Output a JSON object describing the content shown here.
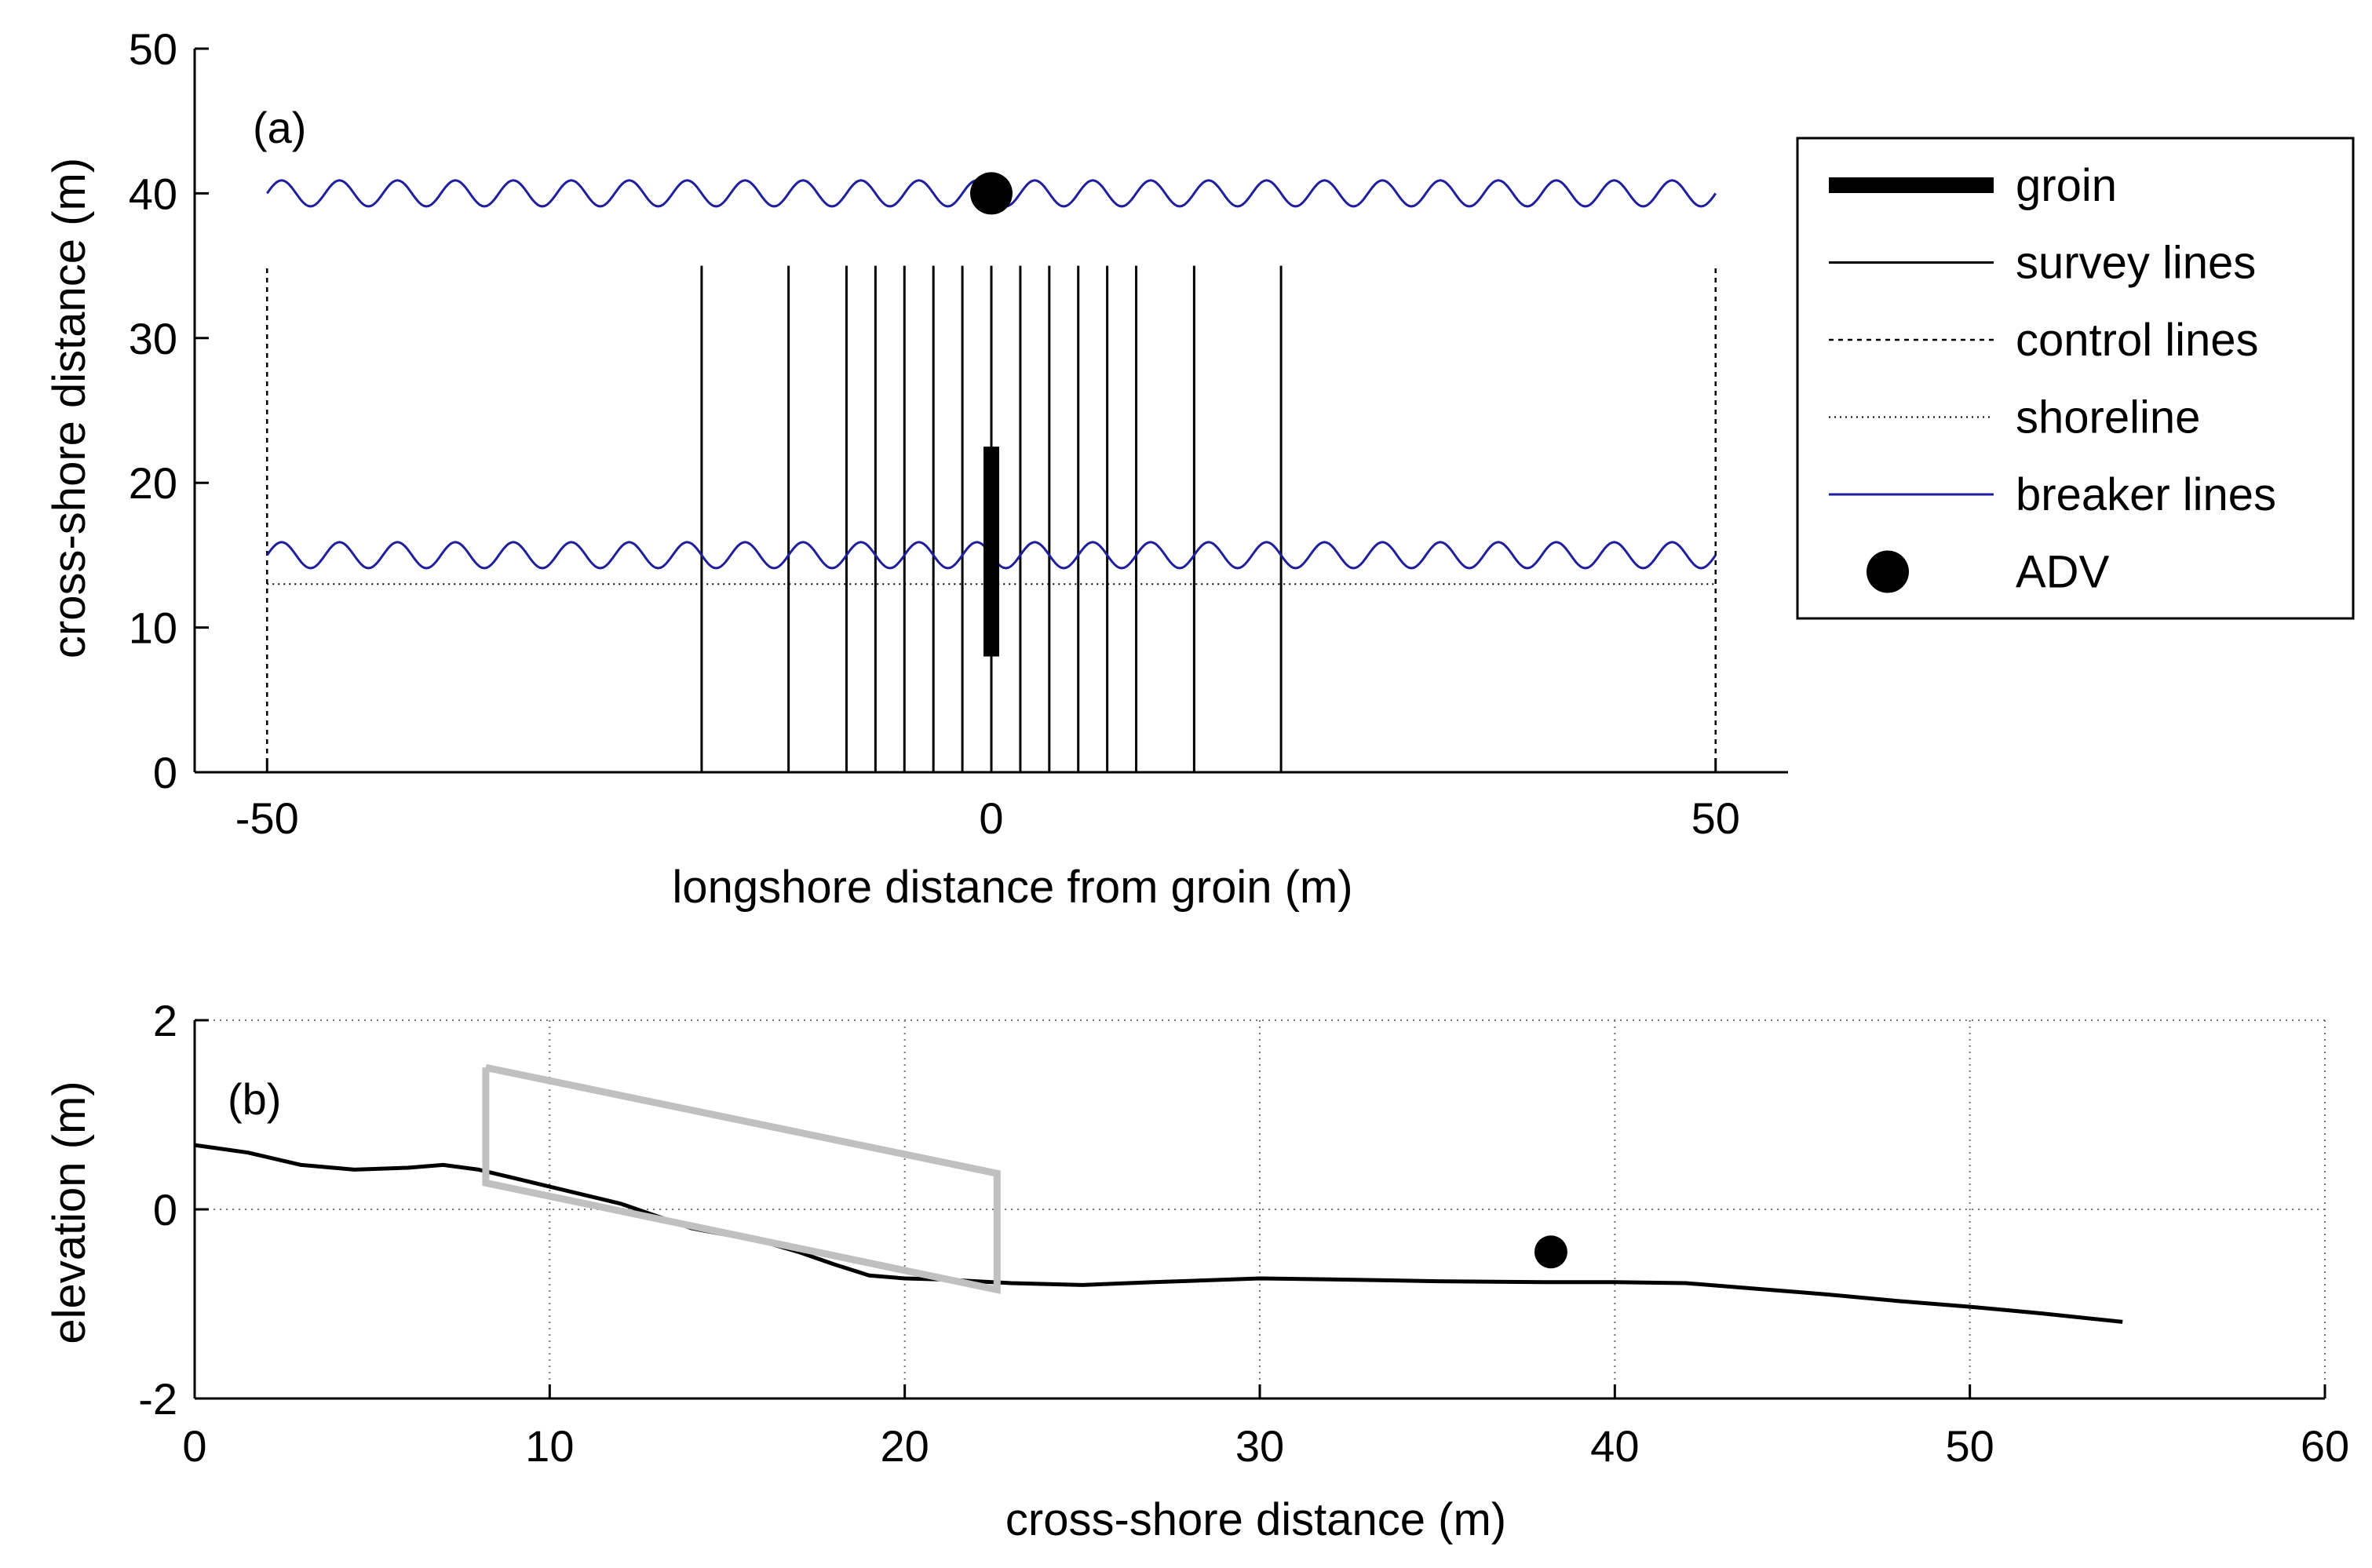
{
  "chart_data": [
    {
      "id": "a",
      "type": "line",
      "panel_label": "(a)",
      "xlabel": "longshore distance from groin (m)",
      "ylabel": "cross-shore distance (m)",
      "xlim": [
        -55,
        55
      ],
      "ylim": [
        0,
        50
      ],
      "xticks": [
        -50,
        0,
        50
      ],
      "xtick_labels": [
        "-50",
        "0",
        "50"
      ],
      "yticks": [
        0,
        10,
        20,
        30,
        40,
        50
      ],
      "ytick_labels": [
        "0",
        "10",
        "20",
        "30",
        "40",
        "50"
      ],
      "series": [
        {
          "name": "groin",
          "style": "thick",
          "color": "#000000",
          "x": [
            0,
            0
          ],
          "y": [
            8,
            22.5
          ]
        },
        {
          "name": "survey lines",
          "style": "solid",
          "color": "#000000",
          "x_positions": [
            -20,
            -14,
            -10,
            -8,
            -6,
            -4,
            -2,
            0,
            2,
            4,
            6,
            8,
            10,
            14,
            20
          ],
          "y_range": [
            0,
            35
          ]
        },
        {
          "name": "control lines",
          "style": "dashed",
          "color": "#000000",
          "x_positions": [
            -50,
            50
          ],
          "y_range": [
            0,
            35
          ]
        },
        {
          "name": "shoreline",
          "style": "dotted",
          "color": "#000000",
          "x": [
            -50,
            50
          ],
          "y": [
            13,
            13
          ]
        },
        {
          "name": "breaker lines",
          "style": "solid",
          "color": "#1f1f9e",
          "wave_centers": [
            40,
            15
          ],
          "wave_amplitude": 0.9,
          "wave_period": 4,
          "x_range": [
            -50,
            50
          ]
        },
        {
          "name": "ADV",
          "style": "marker",
          "color": "#000000",
          "x": [
            0
          ],
          "y": [
            40
          ]
        }
      ],
      "legend": {
        "position": "right",
        "entries": [
          "groin",
          "survey lines",
          "control lines",
          "shoreline",
          "breaker lines",
          "ADV"
        ]
      }
    },
    {
      "id": "b",
      "type": "line",
      "panel_label": "(b)",
      "xlabel": "cross-shore distance (m)",
      "ylabel": "elevation (m)",
      "xlim": [
        0,
        60
      ],
      "ylim": [
        -2,
        2
      ],
      "xticks": [
        0,
        10,
        20,
        30,
        40,
        50,
        60
      ],
      "xtick_labels": [
        "0",
        "10",
        "20",
        "30",
        "40",
        "50",
        "60"
      ],
      "yticks": [
        -2,
        0,
        2
      ],
      "ytick_labels": [
        "-2",
        "0",
        "2"
      ],
      "grid": true,
      "series": [
        {
          "name": "profile",
          "color": "#000000",
          "x": [
            0,
            1.5,
            3,
            4.5,
            6,
            7,
            8,
            9,
            10,
            11,
            12,
            13,
            14,
            15,
            16,
            17,
            18,
            19,
            20,
            21,
            22,
            23,
            25,
            27,
            30,
            32,
            35,
            38,
            40,
            42,
            44,
            46,
            48,
            50,
            52,
            54.3
          ],
          "y": [
            0.68,
            0.6,
            0.47,
            0.42,
            0.44,
            0.47,
            0.42,
            0.33,
            0.24,
            0.15,
            0.06,
            -0.07,
            -0.2,
            -0.27,
            -0.34,
            -0.45,
            -0.58,
            -0.7,
            -0.73,
            -0.74,
            -0.76,
            -0.78,
            -0.8,
            -0.77,
            -0.73,
            -0.74,
            -0.76,
            -0.77,
            -0.77,
            -0.78,
            -0.84,
            -0.9,
            -0.97,
            -1.03,
            -1.1,
            -1.19
          ]
        },
        {
          "name": "structure outline",
          "color": "#c0c0c0",
          "x": [
            8.2,
            8.2,
            22.6,
            22.6,
            8.2
          ],
          "y": [
            1.5,
            0.28,
            -0.85,
            0.38,
            1.5
          ]
        },
        {
          "name": "ADV",
          "style": "marker",
          "color": "#000000",
          "x": [
            38.2
          ],
          "y": [
            -0.45
          ]
        }
      ]
    }
  ]
}
